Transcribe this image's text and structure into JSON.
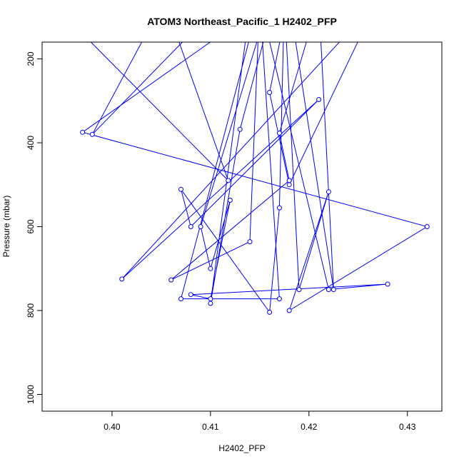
{
  "chart_data": {
    "type": "line",
    "title": "ATOM3 Northeast_Pacific_1 H2402_PFP",
    "xlabel": "H2402_PFP",
    "ylabel": "Pressure (mbar)",
    "xlim": [
      0.3929,
      0.4335
    ],
    "ylim": [
      1040,
      160
    ],
    "y_reversed": true,
    "x_ticks": [
      0.4,
      0.41,
      0.42,
      0.43
    ],
    "x_tick_labels": [
      "0.40",
      "0.41",
      "0.42",
      "0.43"
    ],
    "y_ticks": [
      200,
      400,
      600,
      800,
      1000
    ],
    "y_tick_labels": [
      "200",
      "400",
      "600",
      "800",
      "1000"
    ],
    "grid": false,
    "color": "#0000ff",
    "series": [
      {
        "x": [
          0.3949,
          0.4118,
          0.4053,
          0.398,
          0.4113,
          0.4141,
          0.41,
          0.413,
          0.4165,
          0.4179,
          0.416,
          0.418,
          0.427,
          0.401,
          0.421,
          0.408,
          0.407,
          0.416,
          0.417,
          0.4175,
          0.419,
          0.422,
          0.418,
          0.432,
          0.397,
          0.416,
          0.409,
          0.41,
          0.412,
          0.41,
          0.408,
          0.428,
          0.422,
          0.415,
          0.407,
          0.417,
          0.415,
          0.414,
          0.406,
          0.418,
          0.417,
          0.421,
          0.4225,
          0.418
        ],
        "y": [
          90,
          490,
          60,
          380,
          60,
          60,
          783,
          368,
          60,
          60,
          280,
          500,
          60,
          725,
          297,
          600,
          511,
          804,
          555,
          60,
          750,
          517,
          800,
          600,
          375,
          60,
          600,
          700,
          537,
          772,
          762,
          737,
          750,
          60,
          772,
          772,
          60,
          636,
          727,
          490,
          377,
          60,
          750,
          60
        ]
      }
    ]
  }
}
